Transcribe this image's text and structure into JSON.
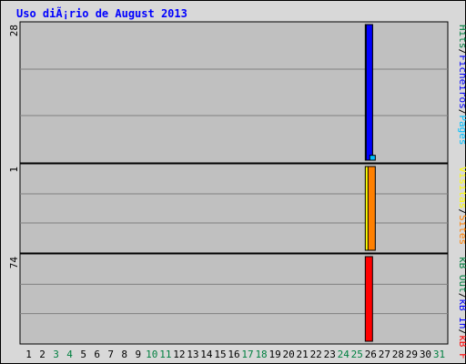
{
  "chart_data": {
    "type": "bar",
    "title": "Uso diÃ¡rio de August 2013",
    "days": [
      "1",
      "2",
      "3",
      "4",
      "5",
      "6",
      "7",
      "8",
      "9",
      "10",
      "11",
      "12",
      "13",
      "14",
      "15",
      "16",
      "17",
      "18",
      "19",
      "20",
      "21",
      "22",
      "23",
      "24",
      "25",
      "26",
      "27",
      "28",
      "29",
      "30",
      "31"
    ],
    "weekend_days": [
      "3",
      "4",
      "10",
      "11",
      "17",
      "18",
      "24",
      "25",
      "31"
    ],
    "panels": [
      {
        "id": "hits-files-pages",
        "y_max_label": "28",
        "legend": [
          {
            "text": "Hits",
            "color": "#008040"
          },
          {
            "text": "/",
            "color": "#000000"
          },
          {
            "text": "Ficheiros",
            "color": "#0000ff"
          },
          {
            "text": "/",
            "color": "#000000"
          },
          {
            "text": "Pages",
            "color": "#00c0ff"
          }
        ],
        "series": [
          {
            "name": "Hits",
            "color": "#008040",
            "values": [
              0,
              0,
              0,
              0,
              0,
              0,
              0,
              0,
              0,
              0,
              0,
              0,
              0,
              0,
              0,
              0,
              0,
              0,
              0,
              0,
              0,
              0,
              0,
              0,
              0,
              28,
              0,
              0,
              0,
              0,
              0
            ]
          },
          {
            "name": "Ficheiros",
            "color": "#0000ff",
            "values": [
              0,
              0,
              0,
              0,
              0,
              0,
              0,
              0,
              0,
              0,
              0,
              0,
              0,
              0,
              0,
              0,
              0,
              0,
              0,
              0,
              0,
              0,
              0,
              0,
              0,
              28,
              0,
              0,
              0,
              0,
              0
            ]
          },
          {
            "name": "Pages",
            "color": "#00c0ff",
            "values": [
              0,
              0,
              0,
              0,
              0,
              0,
              0,
              0,
              0,
              0,
              0,
              0,
              0,
              0,
              0,
              0,
              0,
              0,
              0,
              0,
              0,
              0,
              0,
              0,
              0,
              1,
              0,
              0,
              0,
              0,
              0
            ]
          }
        ],
        "ylim": [
          0,
          28
        ]
      },
      {
        "id": "visits-sites",
        "y_max_label": "1",
        "legend": [
          {
            "text": "Visitas",
            "color": "#ffff00"
          },
          {
            "text": "/",
            "color": "#000000"
          },
          {
            "text": "Sites",
            "color": "#ff8000"
          }
        ],
        "series": [
          {
            "name": "Visitas",
            "color": "#ffff00",
            "values": [
              0,
              0,
              0,
              0,
              0,
              0,
              0,
              0,
              0,
              0,
              0,
              0,
              0,
              0,
              0,
              0,
              0,
              0,
              0,
              0,
              0,
              0,
              0,
              0,
              0,
              1,
              0,
              0,
              0,
              0,
              0
            ]
          },
          {
            "name": "Sites",
            "color": "#ff8000",
            "values": [
              0,
              0,
              0,
              0,
              0,
              0,
              0,
              0,
              0,
              0,
              0,
              0,
              0,
              0,
              0,
              0,
              0,
              0,
              0,
              0,
              0,
              0,
              0,
              0,
              0,
              1,
              0,
              0,
              0,
              0,
              0
            ]
          }
        ],
        "ylim": [
          0,
          1
        ]
      },
      {
        "id": "kb",
        "y_max_label": "74",
        "legend": [
          {
            "text": "kB Out",
            "color": "#008040"
          },
          {
            "text": "/",
            "color": "#000000"
          },
          {
            "text": "kB In",
            "color": "#0000ff"
          },
          {
            "text": "/",
            "color": "#000000"
          },
          {
            "text": "kB F",
            "color": "#ff0000"
          }
        ],
        "series": [
          {
            "name": "kB F",
            "color": "#ff0000",
            "values": [
              0,
              0,
              0,
              0,
              0,
              0,
              0,
              0,
              0,
              0,
              0,
              0,
              0,
              0,
              0,
              0,
              0,
              0,
              0,
              0,
              0,
              0,
              0,
              0,
              0,
              74,
              0,
              0,
              0,
              0,
              0
            ]
          }
        ],
        "ylim": [
          0,
          74
        ]
      }
    ],
    "grid": true
  }
}
